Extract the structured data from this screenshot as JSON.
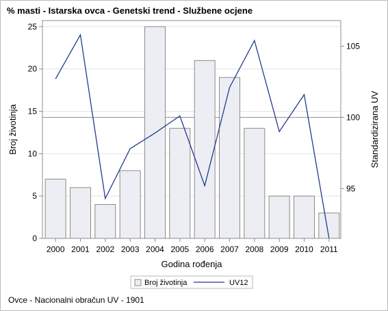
{
  "title": "% masti - Istarska ovca - Genetski trend - Službene ocjene",
  "footnote": "Ovce - Nacionalni obračun UV - 1901",
  "colors": {
    "bar_fill": "#eceef4",
    "bar_stroke": "#8a8a8a",
    "line": "#1f3b8c",
    "grid": "#e2e2e2",
    "reference_line": "#8c8c8c",
    "axis": "#8c8c8c"
  },
  "chart_data": {
    "type": "bar+line",
    "categories": [
      "2000",
      "2001",
      "2002",
      "2003",
      "2004",
      "2005",
      "2006",
      "2007",
      "2008",
      "2009",
      "2010",
      "2011"
    ],
    "xlabel": "Godina rođenja",
    "ylabel_left": "Broj životinja",
    "ylabel_right": "Standardizirana UV",
    "y_left": {
      "range": [
        0,
        25
      ],
      "ticks": [
        0,
        5,
        10,
        15,
        20,
        25
      ]
    },
    "y_right": {
      "range": [
        91.5,
        106.8
      ],
      "ticks": [
        95,
        100,
        105
      ]
    },
    "reference_value_right": 100,
    "grid": "horizontal",
    "legend_position": "bottom",
    "series": [
      {
        "name": "Broj životinja",
        "type": "bar",
        "axis": "left",
        "values": [
          7,
          6,
          4,
          8,
          25,
          13,
          21,
          19,
          13,
          5,
          5,
          3
        ]
      },
      {
        "name": "UV12",
        "type": "line",
        "axis": "right",
        "values": [
          102.7,
          105.8,
          94.3,
          97.8,
          98.9,
          100.1,
          95.2,
          102.1,
          105.4,
          99.0,
          101.6,
          91.5
        ]
      }
    ]
  }
}
